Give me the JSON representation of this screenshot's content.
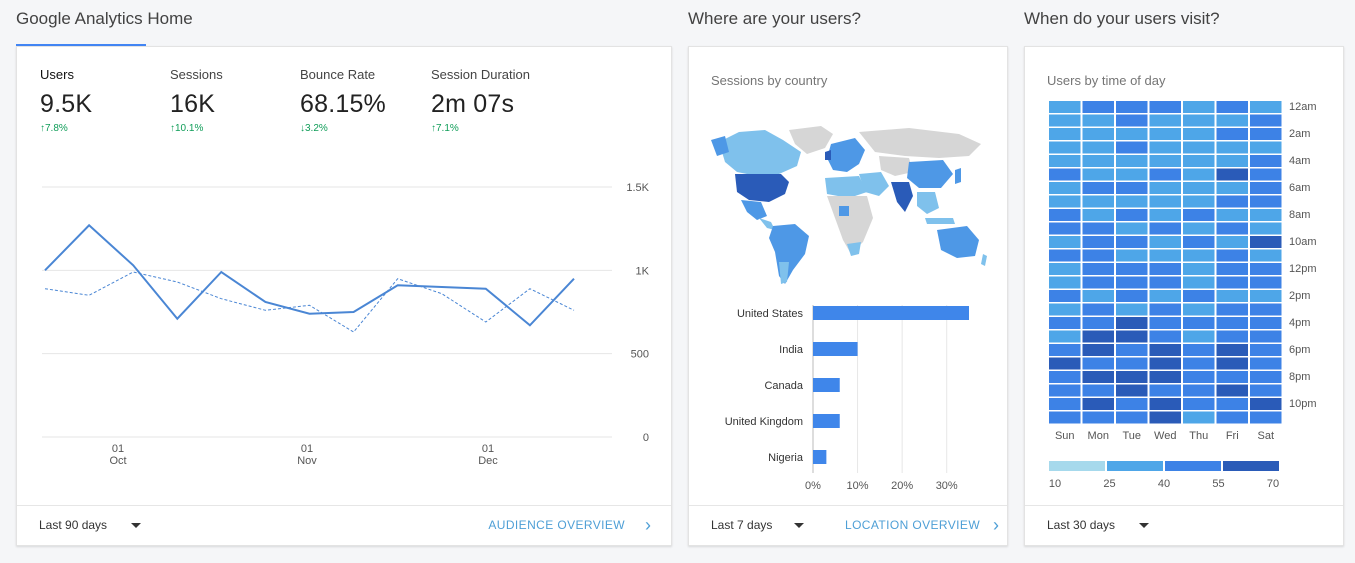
{
  "sections": {
    "home_title": "Google Analytics Home",
    "where_title": "Where are your users?",
    "when_title": "When do your users visit?"
  },
  "overview": {
    "metrics": [
      {
        "label": "Users",
        "value": "9.5K",
        "change": "↑7.8%",
        "active": true
      },
      {
        "label": "Sessions",
        "value": "16K",
        "change": "↑10.1%",
        "active": false
      },
      {
        "label": "Bounce Rate",
        "value": "68.15%",
        "change": "↓3.2%",
        "active": false
      },
      {
        "label": "Session Duration",
        "value": "2m 07s",
        "change": "↑7.1%",
        "active": false
      }
    ],
    "footer": {
      "range": "Last 90 days",
      "link": "AUDIENCE OVERVIEW"
    }
  },
  "chart_data": [
    {
      "type": "line",
      "title": "",
      "ylim": [
        0,
        1500
      ],
      "yticks": [
        "1.5K",
        "1K",
        "500",
        "0"
      ],
      "xticks": [
        {
          "day": "01",
          "month": "Oct"
        },
        {
          "day": "01",
          "month": "Nov"
        },
        {
          "day": "01",
          "month": "Dec"
        }
      ],
      "series": [
        {
          "style": "solid",
          "values": [
            1000,
            1270,
            1030,
            710,
            990,
            810,
            740,
            750,
            910,
            900,
            890,
            670,
            950
          ]
        },
        {
          "style": "dashed",
          "values": [
            890,
            850,
            990,
            930,
            830,
            760,
            790,
            630,
            950,
            860,
            690,
            890,
            760
          ]
        }
      ],
      "grid": true
    },
    {
      "type": "bar",
      "title": "Sessions by country",
      "categories": [
        "United States",
        "India",
        "Canada",
        "United Kingdom",
        "Nigeria"
      ],
      "values": [
        35,
        10,
        6,
        6,
        3
      ],
      "xticks": [
        "0%",
        "10%",
        "20%",
        "30%"
      ],
      "xlim": [
        0,
        35
      ]
    },
    {
      "type": "heatmap",
      "title": "Users by time of day",
      "days": [
        "Sun",
        "Mon",
        "Tue",
        "Wed",
        "Thu",
        "Fri",
        "Sat"
      ],
      "hour_labels": [
        "12am",
        "2am",
        "4am",
        "6am",
        "8am",
        "10am",
        "12pm",
        "2pm",
        "4pm",
        "6pm",
        "8pm",
        "10pm"
      ],
      "legend_ticks": [
        "10",
        "25",
        "40",
        "55",
        "70"
      ],
      "legend_colors": [
        "#a6d9ec",
        "#4ea6e8",
        "#3d82e6",
        "#2a5bb8"
      ],
      "levels": [
        [
          1,
          2,
          2,
          2,
          1,
          2,
          1
        ],
        [
          1,
          1,
          2,
          1,
          1,
          1,
          2
        ],
        [
          1,
          1,
          1,
          1,
          1,
          2,
          2
        ],
        [
          1,
          1,
          2,
          1,
          1,
          1,
          1
        ],
        [
          1,
          1,
          1,
          1,
          1,
          1,
          2
        ],
        [
          2,
          1,
          1,
          2,
          1,
          3,
          2
        ],
        [
          1,
          2,
          2,
          1,
          1,
          1,
          2
        ],
        [
          1,
          1,
          1,
          1,
          1,
          2,
          2
        ],
        [
          2,
          1,
          2,
          1,
          2,
          1,
          1
        ],
        [
          2,
          2,
          1,
          2,
          1,
          2,
          1
        ],
        [
          1,
          2,
          2,
          1,
          2,
          1,
          3
        ],
        [
          2,
          2,
          1,
          1,
          1,
          2,
          1
        ],
        [
          1,
          2,
          2,
          2,
          1,
          2,
          2
        ],
        [
          1,
          2,
          2,
          2,
          1,
          2,
          2
        ],
        [
          2,
          1,
          2,
          1,
          2,
          1,
          1
        ],
        [
          1,
          2,
          1,
          2,
          1,
          2,
          2
        ],
        [
          2,
          2,
          3,
          2,
          2,
          2,
          2
        ],
        [
          1,
          3,
          3,
          2,
          1,
          2,
          2
        ],
        [
          2,
          3,
          2,
          3,
          2,
          3,
          2
        ],
        [
          3,
          2,
          2,
          3,
          2,
          3,
          2
        ],
        [
          2,
          3,
          3,
          3,
          2,
          2,
          2
        ],
        [
          2,
          2,
          3,
          2,
          2,
          3,
          2
        ],
        [
          2,
          3,
          2,
          3,
          2,
          2,
          3
        ],
        [
          2,
          2,
          2,
          3,
          1,
          2,
          2
        ]
      ]
    }
  ],
  "where": {
    "footer": {
      "range": "Last 7 days",
      "link": "LOCATION OVERVIEW"
    },
    "map_colors": {
      "top": "#2a5bb8",
      "high": "#4e98e6",
      "mid": "#7fc1ec",
      "low": "#bfe3f4",
      "none": "#d6d6d6"
    }
  },
  "when": {
    "footer": {
      "range": "Last 30 days"
    }
  },
  "colors": {
    "accent": "#4285f4",
    "positive": "#0f9d58",
    "link": "#4e9fd6",
    "line": "#4a86d4",
    "bar": "#3f86ea"
  }
}
